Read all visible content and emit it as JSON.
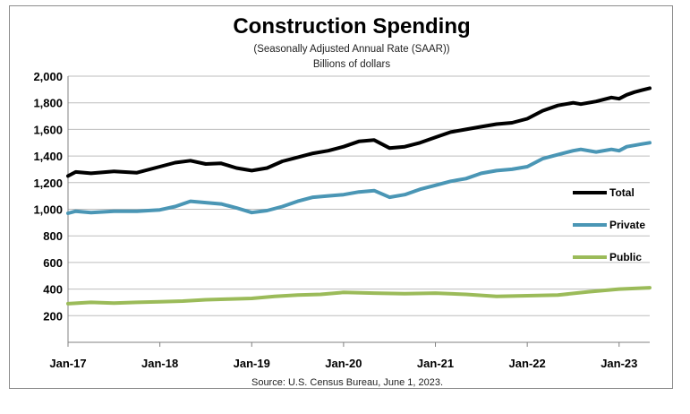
{
  "chart_data": {
    "type": "line",
    "title": "Construction Spending",
    "subtitle": "(Seasonally Adjusted Annual Rate (SAAR))",
    "ylabel": "Billions of dollars",
    "source": "Source: U.S. Census Bureau, June 1, 2023.",
    "ylim": [
      0,
      2000
    ],
    "yticks": [
      "2,000",
      "1,800",
      "1,600",
      "1,400",
      "1,200",
      "1,000",
      "800",
      "600",
      "400",
      "200"
    ],
    "ytick_values": [
      2000,
      1800,
      1600,
      1400,
      1200,
      1000,
      800,
      600,
      400,
      200
    ],
    "xticks": [
      "Jan-17",
      "Jan-18",
      "Jan-19",
      "Jan-20",
      "Jan-21",
      "Jan-22",
      "Jan-23"
    ],
    "xtick_values": [
      0,
      12,
      24,
      36,
      48,
      60,
      72
    ],
    "xlim": [
      0,
      76
    ],
    "series": [
      {
        "name": "Total",
        "color": "#000000",
        "x": [
          0,
          1,
          3,
          6,
          9,
          12,
          14,
          16,
          18,
          20,
          22,
          24,
          26,
          28,
          30,
          32,
          34,
          36,
          38,
          40,
          42,
          44,
          46,
          48,
          50,
          52,
          54,
          56,
          58,
          60,
          62,
          64,
          66,
          67,
          69,
          71,
          72,
          73,
          74,
          75,
          76
        ],
        "values": [
          1250,
          1280,
          1270,
          1285,
          1275,
          1320,
          1350,
          1365,
          1340,
          1345,
          1310,
          1290,
          1310,
          1360,
          1390,
          1420,
          1440,
          1470,
          1510,
          1520,
          1460,
          1470,
          1500,
          1540,
          1580,
          1600,
          1620,
          1640,
          1650,
          1680,
          1740,
          1780,
          1800,
          1790,
          1810,
          1840,
          1830,
          1860,
          1880,
          1895,
          1910
        ]
      },
      {
        "name": "Private",
        "color": "#4a96b5",
        "x": [
          0,
          1,
          3,
          6,
          9,
          12,
          14,
          16,
          18,
          20,
          22,
          24,
          26,
          28,
          30,
          32,
          34,
          36,
          38,
          40,
          42,
          44,
          46,
          48,
          50,
          52,
          54,
          56,
          58,
          60,
          62,
          64,
          66,
          67,
          69,
          71,
          72,
          73,
          74,
          75,
          76
        ],
        "values": [
          970,
          985,
          975,
          985,
          985,
          995,
          1020,
          1060,
          1050,
          1040,
          1010,
          975,
          990,
          1020,
          1060,
          1090,
          1100,
          1110,
          1130,
          1140,
          1090,
          1110,
          1150,
          1180,
          1210,
          1230,
          1270,
          1290,
          1300,
          1320,
          1380,
          1410,
          1440,
          1450,
          1430,
          1450,
          1440,
          1470,
          1480,
          1490,
          1500
        ]
      },
      {
        "name": "Public",
        "color": "#9bbb59",
        "x": [
          0,
          3,
          6,
          9,
          12,
          15,
          18,
          21,
          24,
          27,
          30,
          33,
          36,
          40,
          44,
          48,
          52,
          56,
          60,
          64,
          68,
          72,
          76
        ],
        "values": [
          290,
          300,
          295,
          300,
          305,
          310,
          320,
          325,
          330,
          345,
          355,
          360,
          375,
          370,
          365,
          370,
          360,
          345,
          350,
          355,
          380,
          400,
          410
        ]
      }
    ]
  }
}
